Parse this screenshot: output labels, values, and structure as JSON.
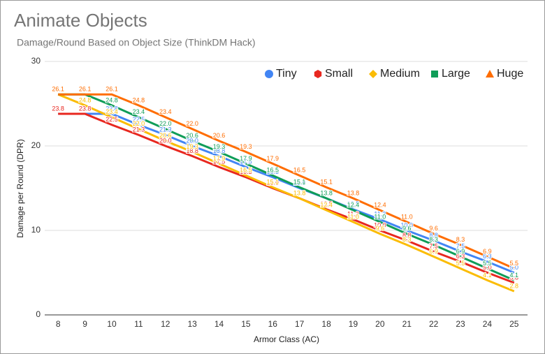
{
  "chart_data": {
    "type": "line",
    "title": "Animate Objects",
    "subtitle": "Damage/Round Based on Object Size (ThinkDM Hack)",
    "x_label": "Armor Class (AC)",
    "y_label": "Damage per Round (DPR)",
    "categories": [
      "8",
      "9",
      "10",
      "11",
      "12",
      "13",
      "14",
      "15",
      "16",
      "17",
      "18",
      "19",
      "20",
      "21",
      "22",
      "23",
      "24",
      "25"
    ],
    "ylim": [
      0,
      30
    ],
    "yticks": [
      0,
      10,
      20,
      30
    ],
    "grid": true,
    "legend": "top-right",
    "series": [
      {
        "name": "Tiny",
        "color": "#4285f4",
        "values": [
          23.8,
          23.8,
          23.8,
          22.5,
          21.3,
          20,
          18.8,
          17.5,
          16.3,
          15,
          13.8,
          12.5,
          11.3,
          10,
          8.8,
          7.5,
          6.3,
          5
        ],
        "value_labels": [
          "23.8",
          "23.8",
          "23.8",
          "22.5",
          "21.3",
          "20.0",
          "18.8",
          "17.5",
          "16.3",
          "15.0",
          "13.8",
          "12.5",
          "11.3",
          "10.0",
          "8.8",
          "7.5",
          "6.3",
          "5.0"
        ]
      },
      {
        "name": "Small",
        "color": "#e8271f",
        "values": [
          23.8,
          23.8,
          22.5,
          21.3,
          20,
          18.8,
          17.5,
          16.3,
          15,
          13.8,
          12.5,
          11.3,
          10,
          8.8,
          7.5,
          6.3,
          5,
          3.8
        ],
        "value_labels": [
          "23.8",
          "23.8",
          "22.5",
          "21.3",
          "20.0",
          "18.8",
          "17.5",
          "16.3",
          "15.0",
          "13.8",
          "12.5",
          "11.3",
          "10.0",
          "8.8",
          "7.5",
          "6.3",
          "5.0",
          "3.8"
        ]
      },
      {
        "name": "Medium",
        "color": "#fbbc04",
        "values": [
          26.1,
          24.8,
          23.4,
          22,
          20.6,
          19.3,
          17.9,
          16.5,
          15.1,
          13.8,
          12.4,
          11,
          9.6,
          8.3,
          6.9,
          5.5,
          4.1,
          2.8
        ],
        "value_labels": [
          "26.1",
          "24.8",
          "23.4",
          "22.0",
          "20.6",
          "19.3",
          "17.9",
          "16.5",
          "15.1",
          "13.8",
          "12.4",
          "11.0",
          "9.6",
          "8.3",
          "6.9",
          "5.5",
          "4.1",
          "2.8"
        ]
      },
      {
        "name": "Large",
        "color": "#0f9d58",
        "values": [
          26.1,
          26.1,
          24.8,
          23.4,
          22,
          20.6,
          19.3,
          17.9,
          16.5,
          15.1,
          13.8,
          12.4,
          11,
          9.6,
          8.3,
          6.9,
          5.5,
          4.1
        ],
        "value_labels": [
          "26.1",
          "26.1",
          "24.8",
          "23.4",
          "22.0",
          "20.6",
          "19.3",
          "17.9",
          "16.5",
          "15.1",
          "13.8",
          "12.4",
          "11.0",
          "9.6",
          "8.3",
          "6.9",
          "5.5",
          "4.1"
        ]
      },
      {
        "name": "Huge",
        "color": "#ff6d01",
        "values": [
          26.1,
          26.1,
          26.1,
          24.8,
          23.4,
          22,
          20.6,
          19.3,
          17.9,
          16.5,
          15.1,
          13.8,
          12.4,
          11,
          9.6,
          8.3,
          6.9,
          5.5
        ],
        "value_labels": [
          "26.1",
          "26.1",
          "26.1",
          "24.8",
          "23.4",
          "22.0",
          "20.6",
          "19.3",
          "17.9",
          "16.5",
          "15.1",
          "13.8",
          "12.4",
          "11.0",
          "9.6",
          "8.3",
          "6.9",
          "5.5"
        ]
      }
    ]
  }
}
